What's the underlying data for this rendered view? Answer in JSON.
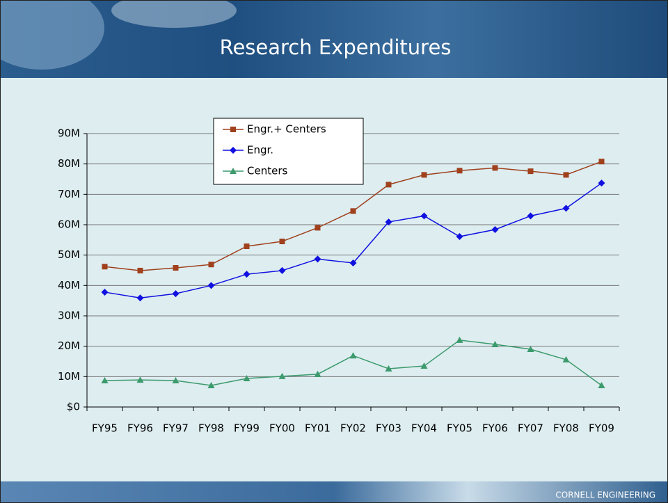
{
  "chart_data": {
    "type": "line",
    "title": "Research Expenditures",
    "categories": [
      "FY95",
      "FY96",
      "FY97",
      "FY98",
      "FY99",
      "FY00",
      "FY01",
      "FY02",
      "FY03",
      "FY04",
      "FY05",
      "FY06",
      "FY07",
      "FY08",
      "FY09"
    ],
    "series": [
      {
        "name": "Engr.+ Centers",
        "color": "#a0401c",
        "marker": "square",
        "values": [
          46.2,
          44.9,
          45.8,
          46.9,
          52.9,
          54.5,
          59.0,
          64.5,
          73.2,
          76.4,
          77.8,
          78.7,
          77.6,
          76.4,
          80.8
        ]
      },
      {
        "name": "Engr.",
        "color": "#1010e0",
        "marker": "diamond",
        "values": [
          37.8,
          35.9,
          37.3,
          40.0,
          43.7,
          44.9,
          48.7,
          47.4,
          60.9,
          62.9,
          56.1,
          58.4,
          62.9,
          65.4,
          73.7
        ]
      },
      {
        "name": "Centers",
        "color": "#3c9a6c",
        "marker": "triangle",
        "values": [
          8.7,
          8.9,
          8.7,
          7.1,
          9.4,
          10.1,
          10.8,
          16.9,
          12.6,
          13.5,
          22.0,
          20.6,
          19.0,
          15.6,
          7.1
        ]
      }
    ],
    "ylim": [
      0,
      90
    ],
    "yticks": [
      {
        "value": 0,
        "label": "$0"
      },
      {
        "value": 10,
        "label": "10M"
      },
      {
        "value": 20,
        "label": "20M"
      },
      {
        "value": 30,
        "label": "30M"
      },
      {
        "value": 40,
        "label": "40M"
      },
      {
        "value": 50,
        "label": "50M"
      },
      {
        "value": 60,
        "label": "60M"
      },
      {
        "value": 70,
        "label": "70M"
      },
      {
        "value": 80,
        "label": "80M"
      },
      {
        "value": 90,
        "label": "90M"
      }
    ],
    "grid": true,
    "legend": "top"
  },
  "footer": "CORNELL ENGINEERING"
}
